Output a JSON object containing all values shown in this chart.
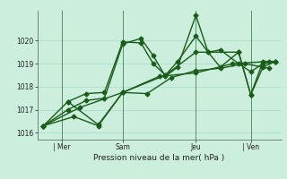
{
  "bg_color": "#cceedd",
  "grid_color": "#aaddcc",
  "line_color": "#1a5c1a",
  "marker": "D",
  "markersize": 2.5,
  "linewidth": 1.0,
  "xlabel": "Pression niveau de la mer( hPa )",
  "ylim": [
    1015.7,
    1021.3
  ],
  "yticks": [
    1016,
    1017,
    1018,
    1019,
    1020
  ],
  "xlim": [
    0,
    20
  ],
  "xtick_positions": [
    2,
    7,
    13,
    17.5
  ],
  "xtick_labels": [
    "| Mer",
    "Sam",
    "Jeu",
    "| Ven"
  ],
  "vlines": [
    2,
    7,
    13,
    17.5
  ],
  "lines": [
    [
      0.5,
      1016.3,
      2.5,
      1017.0,
      4.0,
      1017.4,
      5.5,
      1017.5,
      7.0,
      1019.85,
      8.5,
      1020.1,
      9.5,
      1019.35,
      10.5,
      1018.45,
      11.5,
      1018.85,
      13.0,
      1021.1,
      14.0,
      1019.5,
      15.0,
      1018.85,
      16.5,
      1019.5,
      17.5,
      1017.65,
      18.5,
      1019.1,
      19.5,
      1019.1
    ],
    [
      0.5,
      1016.3,
      2.5,
      1017.35,
      4.0,
      1017.7,
      5.5,
      1017.75,
      7.0,
      1019.95,
      8.5,
      1019.9,
      9.5,
      1019.0,
      10.5,
      1018.5,
      11.5,
      1019.1,
      13.0,
      1020.2,
      14.0,
      1019.5,
      15.0,
      1019.6,
      16.5,
      1019.0,
      17.5,
      1018.65,
      18.5,
      1019.0,
      19.5,
      1019.1
    ],
    [
      0.5,
      1016.3,
      3.0,
      1016.7,
      5.0,
      1016.3,
      7.0,
      1017.75,
      9.0,
      1017.7,
      11.0,
      1018.4,
      13.0,
      1018.7,
      15.0,
      1018.8,
      17.0,
      1019.0,
      19.0,
      1018.8
    ],
    [
      0.5,
      1016.3,
      3.5,
      1017.1,
      7.0,
      1017.75,
      10.0,
      1018.45,
      13.0,
      1018.6,
      16.0,
      1019.0,
      19.0,
      1019.1
    ],
    [
      2.5,
      1017.35,
      5.0,
      1016.35,
      7.0,
      1017.75,
      10.5,
      1018.5,
      13.0,
      1019.5,
      16.5,
      1019.5,
      17.5,
      1017.65,
      18.5,
      1018.85,
      19.5,
      1019.1
    ]
  ]
}
